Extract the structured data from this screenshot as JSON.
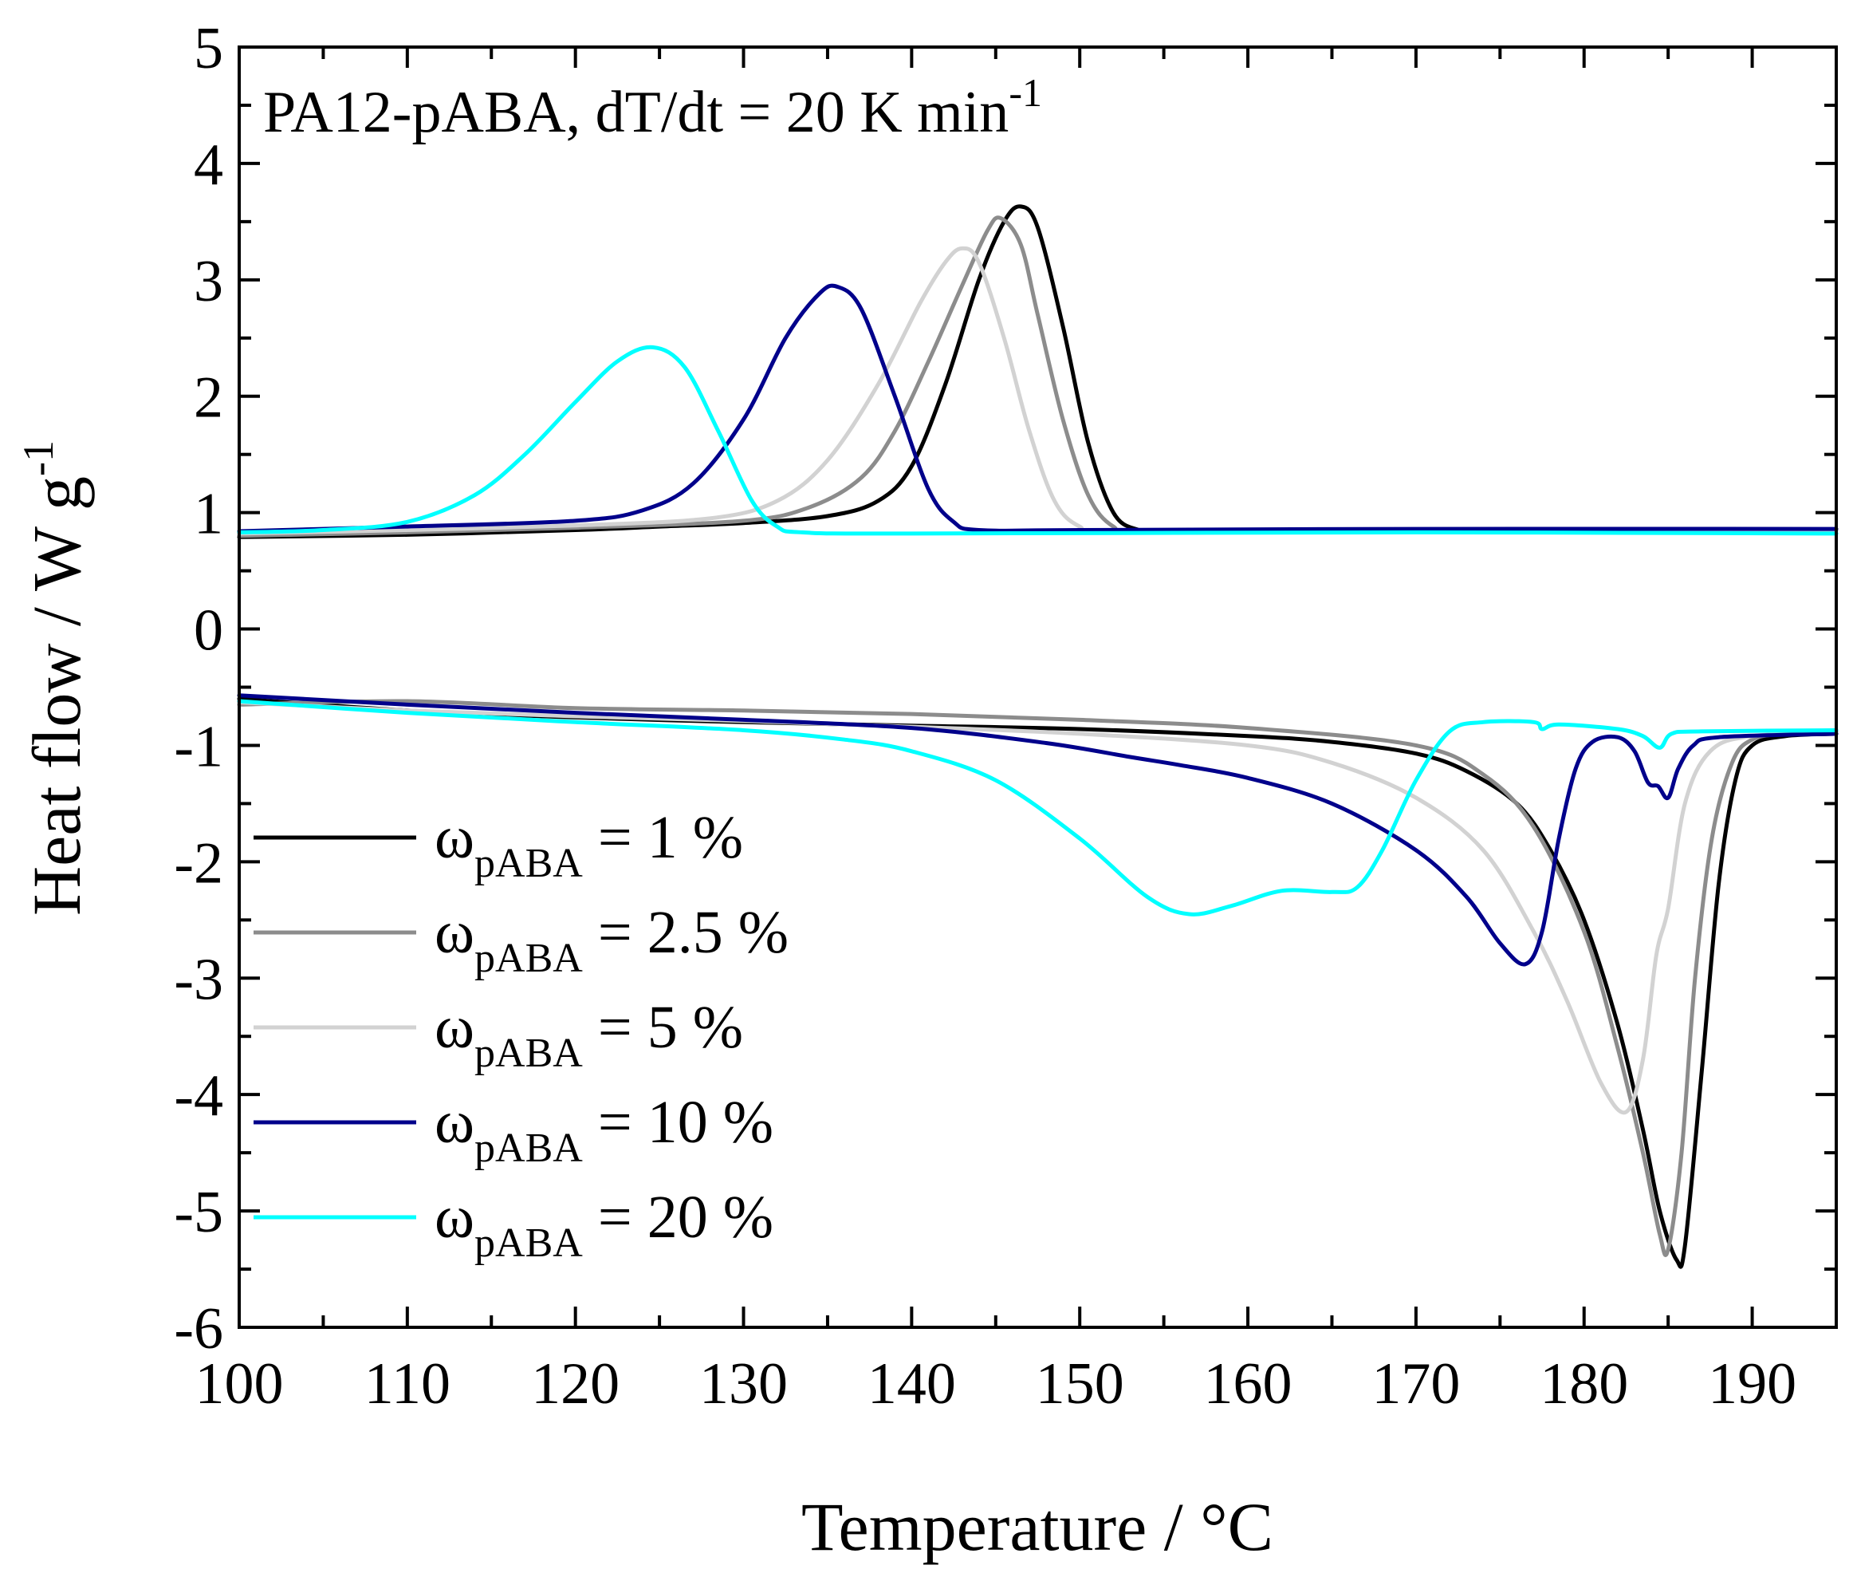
{
  "chart_data": {
    "type": "line",
    "title": "",
    "annotation": {
      "main": "PA12-pABA, dT/dt = 20 K min",
      "superscript": "-1"
    },
    "xlabel": "Temperature / °C",
    "ylabel": {
      "main": "Heat flow / W g",
      "superscript": "-1"
    },
    "xlim": [
      100,
      195
    ],
    "ylim": [
      -6,
      5
    ],
    "x_ticks": [
      100,
      110,
      120,
      130,
      140,
      150,
      160,
      170,
      180,
      190
    ],
    "x_tick_labels": [
      "100",
      "110",
      "120",
      "130",
      "140",
      "150",
      "160",
      "170",
      "180",
      "190"
    ],
    "y_ticks": [
      -6,
      -5,
      -4,
      -3,
      -2,
      -1,
      0,
      1,
      2,
      3,
      4,
      5
    ],
    "y_tick_labels": [
      "-6",
      "-5",
      "-4",
      "-3",
      "-2",
      "-1",
      "0",
      "1",
      "2",
      "3",
      "4",
      "5"
    ],
    "grid": false,
    "legend_position": "lower-left",
    "series": [
      {
        "name": "ω_pABA = 1 %",
        "legend": {
          "symbol": "ω",
          "sub": "pABA",
          "rest": " = 1 %"
        },
        "color": "#000000",
        "cooling": [
          [
            100,
            0.79
          ],
          [
            110,
            0.81
          ],
          [
            120,
            0.85
          ],
          [
            125,
            0.88
          ],
          [
            130,
            0.91
          ],
          [
            135,
            0.97
          ],
          [
            138,
            1.1
          ],
          [
            140,
            1.4
          ],
          [
            142,
            2.1
          ],
          [
            144,
            3.0
          ],
          [
            145.5,
            3.5
          ],
          [
            146.5,
            3.63
          ],
          [
            147.5,
            3.45
          ],
          [
            149,
            2.6
          ],
          [
            150.5,
            1.6
          ],
          [
            152,
            1.0
          ],
          [
            153.5,
            0.85
          ],
          [
            155,
            0.83
          ],
          [
            170,
            0.84
          ],
          [
            195,
            0.85
          ]
        ],
        "heating": [
          [
            100,
            -0.6
          ],
          [
            110,
            -0.7
          ],
          [
            120,
            -0.76
          ],
          [
            130,
            -0.8
          ],
          [
            140,
            -0.83
          ],
          [
            150,
            -0.86
          ],
          [
            160,
            -0.92
          ],
          [
            165,
            -0.97
          ],
          [
            170,
            -1.07
          ],
          [
            173,
            -1.22
          ],
          [
            176,
            -1.5
          ],
          [
            178,
            -1.9
          ],
          [
            180,
            -2.5
          ],
          [
            182,
            -3.4
          ],
          [
            183.5,
            -4.3
          ],
          [
            184.5,
            -5.0
          ],
          [
            185.5,
            -5.42
          ],
          [
            186,
            -5.3
          ],
          [
            187,
            -3.8
          ],
          [
            188,
            -2.2
          ],
          [
            189,
            -1.3
          ],
          [
            190,
            -1.0
          ],
          [
            192,
            -0.92
          ],
          [
            195,
            -0.9
          ]
        ]
      },
      {
        "name": "ω_pABA = 2.5 %",
        "legend": {
          "symbol": "ω",
          "sub": "pABA",
          "rest": " = 2.5 %"
        },
        "color": "#8c8c8c",
        "cooling": [
          [
            100,
            0.8
          ],
          [
            110,
            0.83
          ],
          [
            120,
            0.87
          ],
          [
            130,
            0.93
          ],
          [
            134,
            1.05
          ],
          [
            137,
            1.3
          ],
          [
            139,
            1.7
          ],
          [
            141,
            2.3
          ],
          [
            143,
            2.95
          ],
          [
            144.5,
            3.42
          ],
          [
            145.3,
            3.53
          ],
          [
            146.5,
            3.3
          ],
          [
            147.5,
            2.7
          ],
          [
            149,
            1.8
          ],
          [
            150.5,
            1.15
          ],
          [
            152,
            0.88
          ],
          [
            154,
            0.83
          ],
          [
            170,
            0.84
          ],
          [
            195,
            0.85
          ]
        ],
        "heating": [
          [
            100,
            -0.65
          ],
          [
            110,
            -0.62
          ],
          [
            120,
            -0.68
          ],
          [
            130,
            -0.7
          ],
          [
            140,
            -0.73
          ],
          [
            150,
            -0.78
          ],
          [
            160,
            -0.85
          ],
          [
            170,
            -1.0
          ],
          [
            174,
            -1.25
          ],
          [
            177,
            -1.7
          ],
          [
            180,
            -2.6
          ],
          [
            182,
            -3.6
          ],
          [
            183.5,
            -4.5
          ],
          [
            184.5,
            -5.2
          ],
          [
            185,
            -5.33
          ],
          [
            185.8,
            -4.5
          ],
          [
            186.6,
            -3.0
          ],
          [
            187.6,
            -1.8
          ],
          [
            188.8,
            -1.15
          ],
          [
            190,
            -0.95
          ],
          [
            192,
            -0.9
          ],
          [
            195,
            -0.88
          ]
        ]
      },
      {
        "name": "ω_pABA = 5 %",
        "legend": {
          "symbol": "ω",
          "sub": "pABA",
          "rest": " = 5 %"
        },
        "color": "#d2d2d2",
        "cooling": [
          [
            100,
            0.82
          ],
          [
            110,
            0.85
          ],
          [
            120,
            0.89
          ],
          [
            128,
            0.95
          ],
          [
            132,
            1.1
          ],
          [
            135,
            1.45
          ],
          [
            138,
            2.1
          ],
          [
            140.5,
            2.8
          ],
          [
            142,
            3.15
          ],
          [
            143,
            3.27
          ],
          [
            144,
            3.15
          ],
          [
            145.5,
            2.5
          ],
          [
            147,
            1.7
          ],
          [
            148.5,
            1.1
          ],
          [
            150,
            0.88
          ],
          [
            152,
            0.84
          ],
          [
            170,
            0.84
          ],
          [
            195,
            0.85
          ]
        ],
        "heating": [
          [
            100,
            -0.63
          ],
          [
            110,
            -0.7
          ],
          [
            120,
            -0.75
          ],
          [
            130,
            -0.79
          ],
          [
            140,
            -0.84
          ],
          [
            150,
            -0.9
          ],
          [
            160,
            -1.0
          ],
          [
            165,
            -1.15
          ],
          [
            170,
            -1.45
          ],
          [
            174,
            -1.9
          ],
          [
            177,
            -2.6
          ],
          [
            179,
            -3.2
          ],
          [
            181,
            -3.9
          ],
          [
            182.5,
            -4.15
          ],
          [
            183.5,
            -3.7
          ],
          [
            184.3,
            -2.8
          ],
          [
            185,
            -2.4
          ],
          [
            186,
            -1.5
          ],
          [
            187.5,
            -1.05
          ],
          [
            190,
            -0.92
          ],
          [
            195,
            -0.89
          ]
        ]
      },
      {
        "name": "ω_pABA = 10 %",
        "legend": {
          "symbol": "ω",
          "sub": "pABA",
          "rest": " = 10 %"
        },
        "color": "#00008b",
        "cooling": [
          [
            100,
            0.84
          ],
          [
            110,
            0.88
          ],
          [
            120,
            0.93
          ],
          [
            124,
            1.02
          ],
          [
            127,
            1.25
          ],
          [
            130,
            1.8
          ],
          [
            132.5,
            2.5
          ],
          [
            134.5,
            2.88
          ],
          [
            135.6,
            2.94
          ],
          [
            137,
            2.75
          ],
          [
            139,
            2.0
          ],
          [
            141,
            1.2
          ],
          [
            142.5,
            0.92
          ],
          [
            144,
            0.85
          ],
          [
            150,
            0.85
          ],
          [
            170,
            0.86
          ],
          [
            195,
            0.86
          ]
        ],
        "heating": [
          [
            100,
            -0.57
          ],
          [
            110,
            -0.65
          ],
          [
            120,
            -0.72
          ],
          [
            130,
            -0.78
          ],
          [
            140,
            -0.85
          ],
          [
            148,
            -0.98
          ],
          [
            153,
            -1.1
          ],
          [
            156,
            -1.17
          ],
          [
            160,
            -1.28
          ],
          [
            165,
            -1.5
          ],
          [
            170,
            -1.9
          ],
          [
            173,
            -2.3
          ],
          [
            175,
            -2.7
          ],
          [
            176.5,
            -2.88
          ],
          [
            177.5,
            -2.6
          ],
          [
            178.5,
            -1.8
          ],
          [
            179.5,
            -1.2
          ],
          [
            180.5,
            -0.97
          ],
          [
            182,
            -0.93
          ],
          [
            183,
            -1.05
          ],
          [
            183.8,
            -1.32
          ],
          [
            184.4,
            -1.35
          ],
          [
            185,
            -1.45
          ],
          [
            185.6,
            -1.2
          ],
          [
            186.5,
            -1.0
          ],
          [
            188,
            -0.93
          ],
          [
            195,
            -0.9
          ]
        ]
      },
      {
        "name": "ω_pABA = 20 %",
        "legend": {
          "symbol": "ω",
          "sub": "pABA",
          "rest": " = 20 %"
        },
        "color": "#00ffff",
        "cooling": [
          [
            100,
            0.83
          ],
          [
            105,
            0.85
          ],
          [
            110,
            0.92
          ],
          [
            114,
            1.15
          ],
          [
            117,
            1.5
          ],
          [
            120,
            1.95
          ],
          [
            122.5,
            2.3
          ],
          [
            124.6,
            2.42
          ],
          [
            126.5,
            2.25
          ],
          [
            128.5,
            1.7
          ],
          [
            130.5,
            1.1
          ],
          [
            132,
            0.88
          ],
          [
            133.5,
            0.83
          ],
          [
            140,
            0.82
          ],
          [
            170,
            0.83
          ],
          [
            195,
            0.82
          ]
        ],
        "heating": [
          [
            100,
            -0.62
          ],
          [
            110,
            -0.72
          ],
          [
            120,
            -0.8
          ],
          [
            130,
            -0.87
          ],
          [
            136,
            -0.95
          ],
          [
            140,
            -1.05
          ],
          [
            145,
            -1.3
          ],
          [
            150,
            -1.8
          ],
          [
            154,
            -2.3
          ],
          [
            156.5,
            -2.45
          ],
          [
            159,
            -2.38
          ],
          [
            162,
            -2.25
          ],
          [
            165,
            -2.26
          ],
          [
            166.5,
            -2.22
          ],
          [
            168,
            -1.9
          ],
          [
            170,
            -1.3
          ],
          [
            172,
            -0.88
          ],
          [
            174,
            -0.8
          ],
          [
            177,
            -0.8
          ],
          [
            177.5,
            -0.86
          ],
          [
            178.5,
            -0.82
          ],
          [
            182,
            -0.86
          ],
          [
            183.5,
            -0.92
          ],
          [
            184.5,
            -1.02
          ],
          [
            185.2,
            -0.9
          ],
          [
            187,
            -0.88
          ],
          [
            195,
            -0.87
          ]
        ]
      }
    ]
  }
}
